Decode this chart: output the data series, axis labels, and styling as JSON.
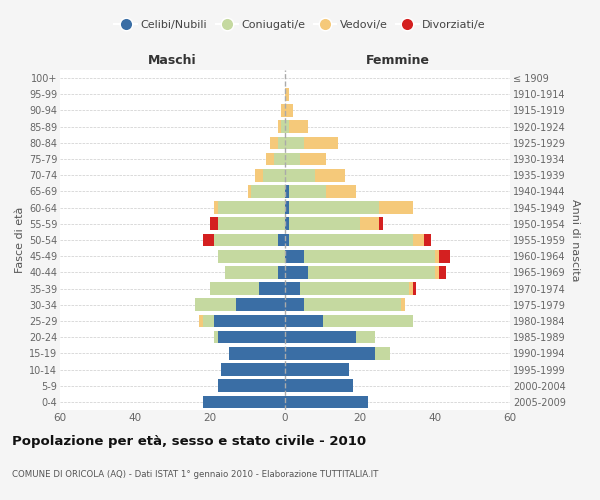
{
  "age_groups": [
    "0-4",
    "5-9",
    "10-14",
    "15-19",
    "20-24",
    "25-29",
    "30-34",
    "35-39",
    "40-44",
    "45-49",
    "50-54",
    "55-59",
    "60-64",
    "65-69",
    "70-74",
    "75-79",
    "80-84",
    "85-89",
    "90-94",
    "95-99",
    "100+"
  ],
  "birth_years": [
    "2005-2009",
    "2000-2004",
    "1995-1999",
    "1990-1994",
    "1985-1989",
    "1980-1984",
    "1975-1979",
    "1970-1974",
    "1965-1969",
    "1960-1964",
    "1955-1959",
    "1950-1954",
    "1945-1949",
    "1940-1944",
    "1935-1939",
    "1930-1934",
    "1925-1929",
    "1920-1924",
    "1915-1919",
    "1910-1914",
    "≤ 1909"
  ],
  "maschi": {
    "celibi": [
      22,
      18,
      17,
      15,
      18,
      19,
      13,
      7,
      2,
      0,
      2,
      0,
      0,
      0,
      0,
      0,
      0,
      0,
      0,
      0,
      0
    ],
    "coniugati": [
      0,
      0,
      0,
      0,
      1,
      3,
      11,
      13,
      14,
      18,
      17,
      18,
      18,
      9,
      6,
      3,
      2,
      1,
      0,
      0,
      0
    ],
    "vedovi": [
      0,
      0,
      0,
      0,
      0,
      1,
      0,
      0,
      0,
      0,
      0,
      0,
      1,
      1,
      2,
      2,
      2,
      1,
      1,
      0,
      0
    ],
    "divorziati": [
      0,
      0,
      0,
      0,
      0,
      0,
      0,
      0,
      0,
      0,
      3,
      2,
      0,
      0,
      0,
      0,
      0,
      0,
      0,
      0,
      0
    ]
  },
  "femmine": {
    "nubili": [
      22,
      18,
      17,
      24,
      19,
      10,
      5,
      4,
      6,
      5,
      1,
      1,
      1,
      1,
      0,
      0,
      0,
      0,
      0,
      0,
      0
    ],
    "coniugate": [
      0,
      0,
      0,
      4,
      5,
      24,
      26,
      29,
      34,
      35,
      33,
      19,
      24,
      10,
      8,
      4,
      5,
      1,
      0,
      0,
      0
    ],
    "vedove": [
      0,
      0,
      0,
      0,
      0,
      0,
      1,
      1,
      1,
      1,
      3,
      5,
      9,
      8,
      8,
      7,
      9,
      5,
      2,
      1,
      0
    ],
    "divorziate": [
      0,
      0,
      0,
      0,
      0,
      0,
      0,
      1,
      2,
      3,
      2,
      1,
      0,
      0,
      0,
      0,
      0,
      0,
      0,
      0,
      0
    ]
  },
  "colors": {
    "celibi_nubili": "#3a6ea5",
    "coniugati_e": "#c5d9a0",
    "vedovi_e": "#f5c97a",
    "divorziati_e": "#d42020"
  },
  "title": "Popolazione per età, sesso e stato civile - 2010",
  "subtitle": "COMUNE DI ORICOLA (AQ) - Dati ISTAT 1° gennaio 2010 - Elaborazione TUTTITALIA.IT",
  "xlabel_left": "Maschi",
  "xlabel_right": "Femmine",
  "ylabel_left": "Fasce di età",
  "ylabel_right": "Anni di nascita",
  "xlim": 60,
  "bg_color": "#f5f5f5",
  "plot_bg": "#ffffff",
  "grid_color": "#cccccc"
}
